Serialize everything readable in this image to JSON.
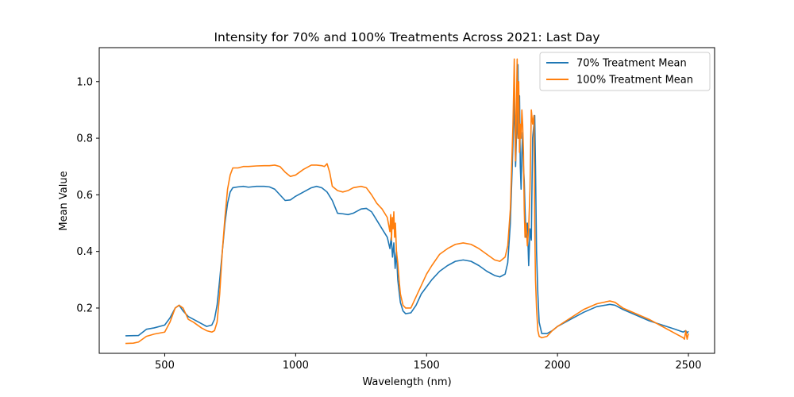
{
  "chart_data": {
    "type": "line",
    "title": "Intensity for 70% and 100% Treatments Across 2021: Last Day",
    "xlabel": "Wavelength (nm)",
    "ylabel": "Mean Value",
    "xlim": [
      250,
      2600
    ],
    "ylim": [
      0.04,
      1.12
    ],
    "xticks": [
      500,
      1000,
      1500,
      2000,
      2500
    ],
    "xtick_labels": [
      "500",
      "1000",
      "1500",
      "2000",
      "2500"
    ],
    "yticks": [
      0.2,
      0.4,
      0.6,
      0.8,
      1.0
    ],
    "ytick_labels": [
      "0.2",
      "0.4",
      "0.6",
      "0.8",
      "1.0"
    ],
    "grid": false,
    "legend_position": "top-right",
    "colors": {
      "series_0": "#1f77b4",
      "series_1": "#ff7f0e"
    },
    "series": [
      {
        "name": "70% Treatment Mean",
        "x": [
          350,
          400,
          430,
          460,
          500,
          520,
          540,
          555,
          570,
          590,
          610,
          640,
          660,
          680,
          690,
          700,
          710,
          720,
          730,
          740,
          750,
          760,
          780,
          800,
          820,
          850,
          880,
          900,
          920,
          940,
          960,
          980,
          1000,
          1030,
          1060,
          1080,
          1100,
          1120,
          1140,
          1160,
          1180,
          1200,
          1220,
          1250,
          1270,
          1290,
          1310,
          1330,
          1350,
          1360,
          1365,
          1370,
          1375,
          1380,
          1385,
          1390,
          1395,
          1400,
          1410,
          1420,
          1440,
          1460,
          1480,
          1500,
          1520,
          1550,
          1580,
          1610,
          1640,
          1670,
          1700,
          1730,
          1760,
          1780,
          1800,
          1810,
          1820,
          1830,
          1835,
          1840,
          1843,
          1846,
          1849,
          1852,
          1855,
          1858,
          1861,
          1864,
          1867,
          1870,
          1873,
          1876,
          1880,
          1885,
          1890,
          1895,
          1900,
          1905,
          1910,
          1913,
          1916,
          1920,
          1925,
          1930,
          1940,
          1960,
          1980,
          2000,
          2050,
          2100,
          2150,
          2200,
          2220,
          2250,
          2300,
          2350,
          2400,
          2450,
          2480,
          2485,
          2490,
          2495,
          2500
        ],
        "y": [
          0.102,
          0.103,
          0.125,
          0.13,
          0.14,
          0.165,
          0.2,
          0.21,
          0.19,
          0.17,
          0.16,
          0.145,
          0.135,
          0.14,
          0.16,
          0.21,
          0.3,
          0.4,
          0.5,
          0.57,
          0.61,
          0.625,
          0.628,
          0.63,
          0.627,
          0.63,
          0.63,
          0.628,
          0.62,
          0.6,
          0.58,
          0.582,
          0.595,
          0.61,
          0.625,
          0.63,
          0.625,
          0.61,
          0.58,
          0.535,
          0.533,
          0.53,
          0.535,
          0.55,
          0.552,
          0.54,
          0.51,
          0.48,
          0.45,
          0.41,
          0.45,
          0.38,
          0.43,
          0.34,
          0.4,
          0.3,
          0.26,
          0.22,
          0.19,
          0.18,
          0.183,
          0.21,
          0.25,
          0.275,
          0.3,
          0.33,
          0.35,
          0.365,
          0.37,
          0.365,
          0.35,
          0.33,
          0.315,
          0.31,
          0.32,
          0.36,
          0.5,
          0.78,
          0.95,
          0.7,
          0.8,
          0.85,
          1.06,
          0.8,
          0.95,
          0.7,
          0.62,
          0.75,
          0.82,
          0.7,
          0.65,
          0.55,
          0.45,
          0.5,
          0.35,
          0.48,
          0.44,
          0.8,
          0.85,
          0.88,
          0.7,
          0.4,
          0.25,
          0.15,
          0.11,
          0.11,
          0.12,
          0.135,
          0.16,
          0.185,
          0.205,
          0.213,
          0.21,
          0.195,
          0.175,
          0.155,
          0.14,
          0.125,
          0.115,
          0.118,
          0.12,
          0.112,
          0.118
        ],
        "label": "70% Treatment Mean"
      },
      {
        "name": "100% Treatment Mean",
        "x": [
          350,
          380,
          400,
          430,
          460,
          500,
          520,
          540,
          555,
          570,
          590,
          610,
          640,
          660,
          680,
          690,
          700,
          710,
          720,
          730,
          740,
          750,
          760,
          780,
          800,
          820,
          850,
          880,
          900,
          920,
          940,
          960,
          980,
          1000,
          1030,
          1060,
          1080,
          1100,
          1110,
          1120,
          1130,
          1140,
          1160,
          1180,
          1200,
          1220,
          1250,
          1270,
          1290,
          1310,
          1330,
          1350,
          1360,
          1363,
          1366,
          1369,
          1372,
          1375,
          1378,
          1381,
          1385,
          1390,
          1395,
          1400,
          1410,
          1420,
          1440,
          1460,
          1480,
          1500,
          1520,
          1550,
          1580,
          1610,
          1640,
          1670,
          1700,
          1730,
          1760,
          1780,
          1800,
          1810,
          1820,
          1830,
          1835,
          1840,
          1843,
          1846,
          1849,
          1852,
          1855,
          1858,
          1861,
          1864,
          1867,
          1870,
          1873,
          1876,
          1880,
          1885,
          1890,
          1895,
          1900,
          1905,
          1910,
          1913,
          1916,
          1920,
          1925,
          1930,
          1940,
          1960,
          1980,
          2000,
          2050,
          2100,
          2150,
          2200,
          2220,
          2250,
          2300,
          2350,
          2400,
          2450,
          2480,
          2485,
          2490,
          2495,
          2500
        ],
        "y": [
          0.075,
          0.076,
          0.08,
          0.1,
          0.108,
          0.115,
          0.15,
          0.2,
          0.21,
          0.2,
          0.16,
          0.15,
          0.13,
          0.12,
          0.115,
          0.12,
          0.15,
          0.25,
          0.4,
          0.52,
          0.62,
          0.67,
          0.695,
          0.695,
          0.7,
          0.7,
          0.702,
          0.703,
          0.703,
          0.705,
          0.7,
          0.68,
          0.665,
          0.67,
          0.69,
          0.705,
          0.705,
          0.703,
          0.7,
          0.71,
          0.68,
          0.63,
          0.615,
          0.61,
          0.615,
          0.625,
          0.63,
          0.625,
          0.6,
          0.57,
          0.55,
          0.52,
          0.47,
          0.53,
          0.44,
          0.52,
          0.48,
          0.54,
          0.45,
          0.5,
          0.4,
          0.36,
          0.3,
          0.25,
          0.21,
          0.2,
          0.2,
          0.24,
          0.28,
          0.32,
          0.35,
          0.39,
          0.41,
          0.425,
          0.43,
          0.425,
          0.41,
          0.39,
          0.37,
          0.365,
          0.38,
          0.42,
          0.55,
          0.85,
          1.08,
          0.72,
          0.9,
          1.08,
          0.8,
          1.0,
          0.75,
          0.85,
          0.8,
          0.9,
          0.85,
          0.75,
          0.55,
          0.45,
          0.5,
          0.42,
          0.48,
          0.62,
          0.9,
          0.85,
          0.88,
          0.5,
          0.3,
          0.2,
          0.12,
          0.1,
          0.095,
          0.1,
          0.12,
          0.135,
          0.165,
          0.195,
          0.215,
          0.225,
          0.22,
          0.2,
          0.18,
          0.16,
          0.135,
          0.11,
          0.095,
          0.09,
          0.12,
          0.09,
          0.11
        ],
        "label": "100% Treatment Mean"
      }
    ]
  }
}
